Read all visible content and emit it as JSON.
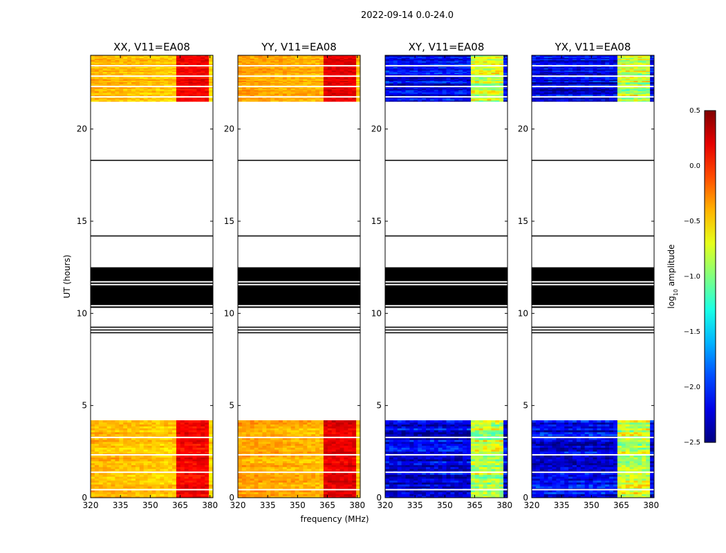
{
  "suptitle": "2022-09-14 0.0-24.0",
  "chart_data": {
    "type": "heatmap",
    "x_label": "frequency (MHz)",
    "y_label": "UT (hours)",
    "x_range": [
      320,
      381.5
    ],
    "y_range": [
      0,
      24
    ],
    "x_ticks": [
      320,
      335,
      350,
      365,
      380
    ],
    "y_ticks": [
      0,
      5,
      10,
      15,
      20
    ],
    "colorbar": {
      "label": "log",
      "label_sub": "10",
      "label_rest": " amplitude",
      "min": -2.5,
      "max": 0.5,
      "ticks": [
        -2.5,
        -2.0,
        -1.5,
        -1.0,
        -0.5,
        0.0,
        0.5
      ],
      "tick_labels": [
        "−2.5",
        "−2.0",
        "−1.5",
        "−1.0",
        "−0.5",
        "0.0",
        "0.5"
      ],
      "colormap": "jet"
    },
    "flagged_time_ranges": [
      [
        10.3,
        12.5
      ],
      [
        10.55,
        10.6
      ]
    ],
    "data_time_ranges": [
      [
        0,
        4.2
      ],
      [
        21.5,
        24
      ]
    ],
    "rfi_freq_band_mhz": [
      363,
      378
    ],
    "panels": [
      {
        "title": "XX, V11=EA08",
        "base_level": -0.4,
        "rfi_level": 0.15
      },
      {
        "title": "YY, V11=EA08",
        "base_level": -0.35,
        "rfi_level": 0.2
      },
      {
        "title": "XY, V11=EA08",
        "base_level": -2.2,
        "rfi_level": -0.8
      },
      {
        "title": "YX, V11=EA08",
        "base_level": -2.2,
        "rfi_level": -0.8
      }
    ]
  }
}
